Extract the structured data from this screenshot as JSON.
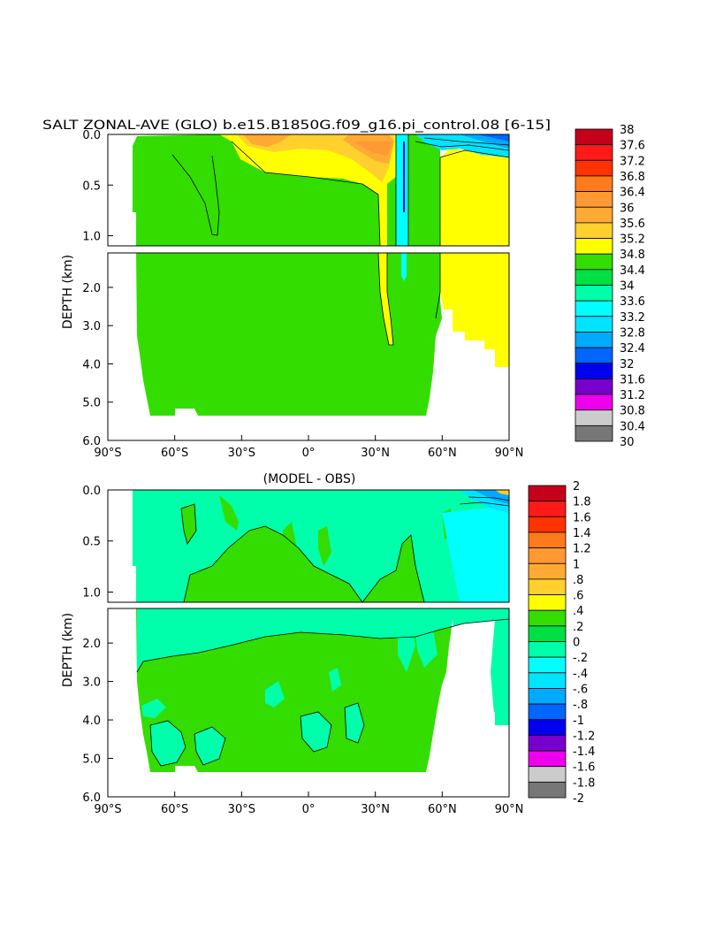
{
  "title": "SALT ZONAL-AVE (GLO) b.e15.B1850G.f09_g16.pi_control.08 [6-15]",
  "colors": {
    "background": "#ffffff",
    "axis": "#000000"
  },
  "chart_data": [
    {
      "type": "heatmap",
      "title": "SALT ZONAL-AVE (GLO) b.e15.B1850G.f09_g16.pi_control.08 [6-15]",
      "ylabel": "DEPTH (km)",
      "xlabel": "",
      "x_ticks": [
        "90°S",
        "60°S",
        "30°S",
        "0°",
        "30°N",
        "60°N",
        "90°N"
      ],
      "y_ticks_upper": [
        "0.0",
        "0.5",
        "1.0"
      ],
      "y_ticks_lower": [
        "2.0",
        "3.0",
        "4.0",
        "5.0",
        "6.0"
      ],
      "xlim": [
        -90,
        90
      ],
      "ylim_upper_km": [
        0,
        1.1
      ],
      "ylim_lower_km": [
        1.1,
        6.0
      ],
      "colorbar_labels": [
        "38",
        "37.6",
        "37.2",
        "36.8",
        "36.4",
        "36",
        "35.6",
        "35.2",
        "34.8",
        "34.4",
        "34",
        "33.6",
        "33.2",
        "32.8",
        "32.4",
        "32",
        "31.6",
        "31.2",
        "30.8",
        "30.4",
        "30"
      ],
      "colorbar_colors": [
        "#c4001a",
        "#ff1a1a",
        "#ff3300",
        "#ff7a1a",
        "#ff9933",
        "#ffaa33",
        "#ffd02e",
        "#ffff00",
        "#33dd00",
        "#00e043",
        "#00ffaa",
        "#00ffff",
        "#00e5ff",
        "#00aaff",
        "#0066ff",
        "#0000ee",
        "#7700cc",
        "#ee00ee",
        "#cccccc",
        "#777777"
      ],
      "dominant_value_range": "34.4-34.8"
    },
    {
      "type": "heatmap",
      "title": "(MODEL - OBS)",
      "ylabel": "DEPTH (km)",
      "xlabel": "",
      "x_ticks": [
        "90°S",
        "60°S",
        "30°S",
        "0°",
        "30°N",
        "60°N",
        "90°N"
      ],
      "y_ticks_upper": [
        "0.0",
        "0.5",
        "1.0"
      ],
      "y_ticks_lower": [
        "2.0",
        "3.0",
        "4.0",
        "5.0",
        "6.0"
      ],
      "xlim": [
        -90,
        90
      ],
      "ylim_upper_km": [
        0,
        1.1
      ],
      "ylim_lower_km": [
        1.1,
        6.0
      ],
      "colorbar_labels": [
        "2",
        "1.8",
        "1.6",
        "1.4",
        "1.2",
        "1",
        ".8",
        ".6",
        ".4",
        ".2",
        "0",
        "-.2",
        "-.4",
        "-.6",
        "-.8",
        "-1",
        "-1.2",
        "-1.4",
        "-1.6",
        "-1.8",
        "-2"
      ],
      "colorbar_colors": [
        "#c4001a",
        "#ff1a1a",
        "#ff3300",
        "#ff7a1a",
        "#ff9933",
        "#ffaa33",
        "#ffd02e",
        "#ffff00",
        "#33dd00",
        "#00e043",
        "#00ffaa",
        "#00ffff",
        "#00e5ff",
        "#00aaff",
        "#0066ff",
        "#0000ee",
        "#7700cc",
        "#ee00ee",
        "#cccccc",
        "#777777"
      ],
      "dominant_value_range": "-0.2-0.2"
    }
  ]
}
